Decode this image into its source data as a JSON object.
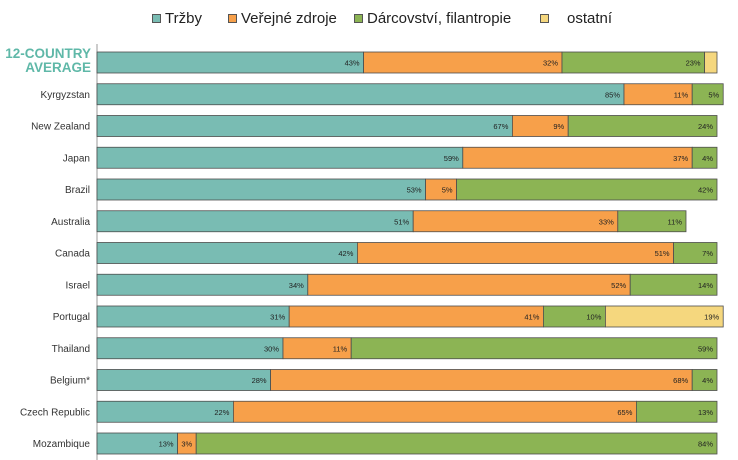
{
  "legend": [
    {
      "label": "Tržby",
      "color": "#79bcb3"
    },
    {
      "label": "Veřejné zdroje",
      "color": "#f7a04a"
    },
    {
      "label": "Dárcovství, filantropie",
      "color": "#8cb454"
    },
    {
      "label": "ostatní",
      "color": "#f5d77e"
    }
  ],
  "chart_data": {
    "type": "bar",
    "orientation": "horizontal",
    "stacked": true,
    "categories": [
      "12-COUNTRY AVERAGE",
      "Kyrgyzstan",
      "New Zealand",
      "Japan",
      "Brazil",
      "Australia",
      "Canada",
      "Israel",
      "Portugal",
      "Thailand",
      "Belgium*",
      "Czech Republic",
      "Mozambique"
    ],
    "highlight_category": "12-COUNTRY AVERAGE",
    "highlight_color": "#5fb8a8",
    "series": [
      {
        "name": "Tržby",
        "color": "#79bcb3",
        "values": [
          43,
          85,
          67,
          59,
          53,
          51,
          42,
          34,
          31,
          30,
          28,
          22,
          13
        ]
      },
      {
        "name": "Veřejné zdroje",
        "color": "#f7a04a",
        "values": [
          32,
          11,
          9,
          37,
          5,
          33,
          51,
          52,
          41,
          11,
          68,
          65,
          3
        ]
      },
      {
        "name": "Dárcovství, filantropie",
        "color": "#8cb454",
        "values": [
          23,
          5,
          24,
          4,
          42,
          11,
          7,
          14,
          10,
          59,
          4,
          13,
          84
        ]
      },
      {
        "name": "ostatní",
        "color": "#f5d77e",
        "values": [
          2,
          0,
          0,
          0,
          0,
          0,
          0,
          0,
          19,
          0,
          0,
          0,
          0
        ]
      }
    ],
    "value_labels": [
      [
        "43%",
        "32%",
        "23%",
        ""
      ],
      [
        "85%",
        "11%",
        "5%",
        ""
      ],
      [
        "67%",
        "9%",
        "24%",
        ""
      ],
      [
        "59%",
        "37%",
        "4%",
        ""
      ],
      [
        "53%",
        "5%",
        "42%",
        ""
      ],
      [
        "51%",
        "33%",
        "11%",
        ""
      ],
      [
        "42%",
        "51%",
        "7%",
        ""
      ],
      [
        "34%",
        "52%",
        "14%",
        ""
      ],
      [
        "31%",
        "41%",
        "10%",
        "19%"
      ],
      [
        "30%",
        "11%",
        "59%",
        ""
      ],
      [
        "28%",
        "68%",
        "4%",
        ""
      ],
      [
        "22%",
        "65%",
        "13%",
        ""
      ],
      [
        "13%",
        "3%",
        "84%",
        ""
      ]
    ],
    "xlim": [
      0,
      100
    ],
    "legend_position": "top",
    "grid": false
  }
}
